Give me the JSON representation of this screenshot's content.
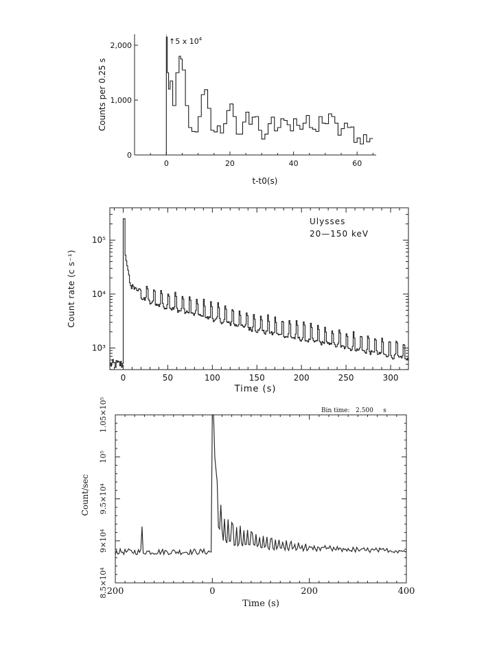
{
  "chart_data": [
    {
      "type": "line",
      "style": "step",
      "xlabel": "t-t0(s)",
      "ylabel": "Counts per 0.25 s",
      "annotation": "↑5 x 10",
      "annotation_sup": "4",
      "xlim": [
        -10,
        66
      ],
      "ylim": [
        0,
        2200
      ],
      "xticks": [
        0,
        20,
        40,
        60
      ],
      "yticks": [
        0,
        1000,
        2000
      ],
      "yticklabels": [
        "0",
        "1,000",
        "2,000"
      ],
      "x": [
        -1,
        0,
        0.3,
        0.7,
        1.2,
        2,
        3,
        4,
        4.5,
        5,
        6,
        7,
        8,
        9,
        10,
        11,
        12,
        13,
        14,
        15,
        16,
        17,
        18,
        19,
        20,
        21,
        22,
        23,
        24,
        25,
        26,
        27,
        28,
        29,
        30,
        31,
        32,
        33,
        34,
        35,
        36,
        37,
        38,
        39,
        40,
        41,
        42,
        43,
        44,
        45,
        46,
        47,
        48,
        49,
        50,
        51,
        52,
        53,
        54,
        55,
        56,
        57,
        58,
        59,
        60,
        61,
        62,
        63,
        64
      ],
      "y": [
        0,
        2150,
        1500,
        1200,
        1350,
        900,
        1500,
        1800,
        1750,
        1550,
        900,
        500,
        430,
        420,
        700,
        1100,
        1190,
        850,
        450,
        420,
        530,
        400,
        570,
        810,
        930,
        700,
        380,
        380,
        600,
        780,
        560,
        690,
        700,
        450,
        290,
        380,
        570,
        690,
        440,
        500,
        660,
        630,
        550,
        440,
        660,
        540,
        470,
        580,
        720,
        500,
        470,
        430,
        700,
        580,
        570,
        750,
        700,
        580,
        360,
        480,
        580,
        500,
        510,
        230,
        310,
        200,
        370,
        240,
        300
      ]
    },
    {
      "type": "line",
      "style": "step",
      "scale": "log",
      "xlabel": "Time (s)",
      "ylabel": "Count rate (c s⁻¹)",
      "legend": [
        "Ulysses",
        "20—150 keV"
      ],
      "xlim": [
        -15,
        320
      ],
      "ylim_log10": [
        2.6,
        5.6
      ],
      "xticks": [
        0,
        50,
        100,
        150,
        200,
        250,
        300
      ],
      "yticklabels": [
        "10³",
        "10⁴",
        "10⁵"
      ],
      "yticks": [
        3,
        4,
        5
      ],
      "summary": {
        "pre_burst_rate": 500,
        "peak_rate": 250000,
        "pulse_period_s": 8,
        "rate_at_50s": 8000,
        "rate_at_150s": 3000,
        "rate_at_300s": 1000
      }
    },
    {
      "type": "line",
      "xlabel": "Time (s)",
      "ylabel": "Count/sec",
      "header": "Bin time:   2.500     s",
      "xlim": [
        -200,
        400
      ],
      "ylim": [
        85000,
        105000
      ],
      "xticks": [
        -200,
        0,
        200,
        400
      ],
      "xticklabels": [
        "200",
        "0",
        "200",
        "400"
      ],
      "yticks": [
        85000,
        90000,
        95000,
        100000,
        105000
      ],
      "yticklabels": [
        "8.5×10⁴",
        "9×10⁴",
        "9.5×10⁴",
        "10⁵",
        "1.05×10⁵"
      ],
      "summary": {
        "background": 88700,
        "precursor_time_s": -145,
        "precursor_peak": 91700,
        "peak": 105200,
        "pulse_period_s": 8
      }
    }
  ]
}
